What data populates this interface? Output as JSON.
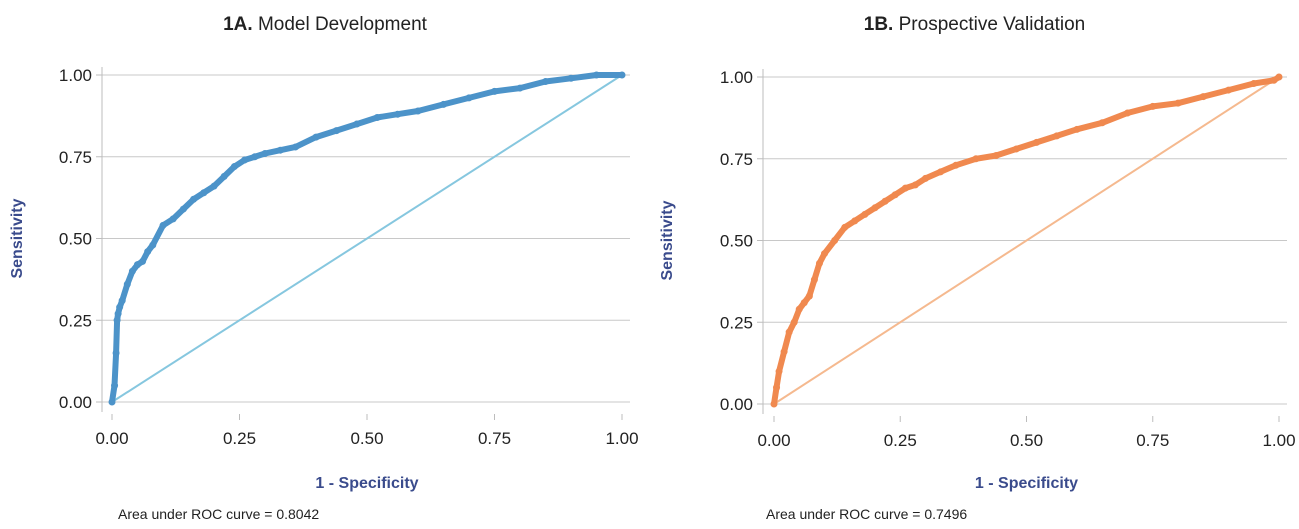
{
  "panels": [
    {
      "title_prefix": "1A.",
      "title_text": "Model Development",
      "auc_text": "Area under ROC curve = 0.8042",
      "curve_color": "#4c93c9",
      "diag_color": "#86c7df"
    },
    {
      "title_prefix": "1B.",
      "title_text": "Prospective Validation",
      "auc_text": "Area under ROC curve = 0.7496",
      "curve_color": "#f0894f",
      "diag_color": "#f5b98f"
    }
  ],
  "chart_data": [
    {
      "type": "line",
      "title": "1A. Model Development",
      "xlabel": "1 - Specificity",
      "ylabel": "Sensitivity",
      "xlim": [
        0,
        1
      ],
      "ylim": [
        0,
        1
      ],
      "xticks": [
        "0.00",
        "0.25",
        "0.50",
        "0.75",
        "1.00"
      ],
      "yticks": [
        "0.00",
        "0.25",
        "0.50",
        "0.75",
        "1.00"
      ],
      "grid": "horizontal",
      "series": [
        {
          "x": [
            0,
            0.005,
            0.008,
            0.01,
            0.012,
            0.015,
            0.02,
            0.03,
            0.04,
            0.05,
            0.06,
            0.07,
            0.08,
            0.1,
            0.12,
            0.14,
            0.16,
            0.18,
            0.2,
            0.22,
            0.24,
            0.26,
            0.28,
            0.3,
            0.33,
            0.36,
            0.4,
            0.44,
            0.48,
            0.52,
            0.56,
            0.6,
            0.65,
            0.7,
            0.75,
            0.8,
            0.85,
            0.9,
            0.95,
            1.0
          ],
          "y": [
            0,
            0.05,
            0.15,
            0.25,
            0.27,
            0.29,
            0.31,
            0.36,
            0.4,
            0.42,
            0.43,
            0.46,
            0.48,
            0.54,
            0.56,
            0.59,
            0.62,
            0.64,
            0.66,
            0.69,
            0.72,
            0.74,
            0.75,
            0.76,
            0.77,
            0.78,
            0.81,
            0.83,
            0.85,
            0.87,
            0.88,
            0.89,
            0.91,
            0.93,
            0.95,
            0.96,
            0.98,
            0.99,
            1.0,
            1.0
          ]
        },
        {
          "x": [
            0,
            1
          ],
          "y": [
            0,
            1
          ]
        }
      ]
    },
    {
      "type": "line",
      "title": "1B. Prospective Validation",
      "xlabel": "1 - Specificity",
      "ylabel": "Sensitivity",
      "xlim": [
        0,
        1
      ],
      "ylim": [
        0,
        1
      ],
      "xticks": [
        "0.00",
        "0.25",
        "0.50",
        "0.75",
        "1.00"
      ],
      "yticks": [
        "0.00",
        "0.25",
        "0.50",
        "0.75",
        "1.00"
      ],
      "grid": "horizontal",
      "series": [
        {
          "x": [
            0,
            0.005,
            0.01,
            0.02,
            0.03,
            0.04,
            0.05,
            0.06,
            0.07,
            0.08,
            0.09,
            0.1,
            0.12,
            0.14,
            0.16,
            0.18,
            0.2,
            0.22,
            0.24,
            0.26,
            0.28,
            0.3,
            0.33,
            0.36,
            0.4,
            0.44,
            0.48,
            0.52,
            0.56,
            0.6,
            0.65,
            0.7,
            0.75,
            0.8,
            0.85,
            0.9,
            0.95,
            0.99,
            1.0
          ],
          "y": [
            0,
            0.05,
            0.1,
            0.16,
            0.22,
            0.25,
            0.29,
            0.31,
            0.33,
            0.38,
            0.43,
            0.46,
            0.5,
            0.54,
            0.56,
            0.58,
            0.6,
            0.62,
            0.64,
            0.66,
            0.67,
            0.69,
            0.71,
            0.73,
            0.75,
            0.76,
            0.78,
            0.8,
            0.82,
            0.84,
            0.86,
            0.89,
            0.91,
            0.92,
            0.94,
            0.96,
            0.98,
            0.99,
            1.0
          ]
        },
        {
          "x": [
            0,
            1
          ],
          "y": [
            0,
            1
          ]
        }
      ]
    }
  ]
}
